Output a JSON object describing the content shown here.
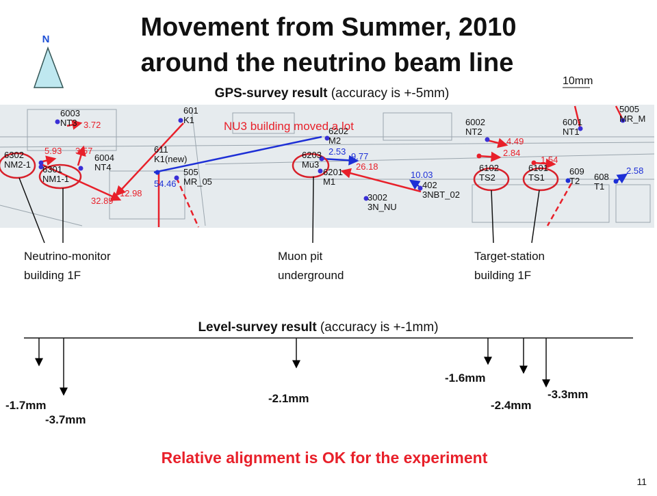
{
  "title": {
    "line1": "Movement from Summer, 2010",
    "line2": "around the neutrino beam line"
  },
  "north": "N",
  "scale": "10mm",
  "gps_heading": {
    "bold": "GPS-survey result",
    "normal": " (accuracy is +-5mm)"
  },
  "map": {
    "annotation": "NU3 building moved a lot",
    "stations": [
      {
        "id": "6003",
        "name": "NT3"
      },
      {
        "id": "601",
        "name": "K1"
      },
      {
        "id": "6302",
        "name": "NM2-1"
      },
      {
        "id": "6301",
        "name": "NM1-1"
      },
      {
        "id": "6004",
        "name": "NT4"
      },
      {
        "id": "611",
        "name": "K1(new)"
      },
      {
        "id": "505",
        "name": "MR_05"
      },
      {
        "id": "6202",
        "name": "M2"
      },
      {
        "id": "6203",
        "name": "Mu3"
      },
      {
        "id": "6201",
        "name": "M1"
      },
      {
        "id": "402",
        "name": "3NBT_02"
      },
      {
        "id": "3002",
        "name": "3N_NU"
      },
      {
        "id": "6002",
        "name": "NT2"
      },
      {
        "id": "6001",
        "name": "NT1"
      },
      {
        "id": "5005",
        "name": "MR_M"
      },
      {
        "id": "6102",
        "name": "TS2"
      },
      {
        "id": "6101",
        "name": "TS1"
      },
      {
        "id": "609",
        "name": "T2"
      },
      {
        "id": "608",
        "name": "T1"
      }
    ],
    "displacements": [
      "3.72",
      "5.93",
      "3.57",
      "32.89",
      "12.98",
      "54.46",
      "2.53",
      "9.77",
      "26.18",
      "10.03",
      "4.49",
      "2.84",
      "1.54",
      "2.58"
    ]
  },
  "callouts": [
    {
      "line1": "Neutrino-monitor",
      "line2": "building 1F"
    },
    {
      "line1": "Muon pit",
      "line2": "underground"
    },
    {
      "line1": "Target-station",
      "line2": "building 1F"
    }
  ],
  "level_heading": {
    "bold": "Level-survey result",
    "normal": " (accuracy is +-1mm)"
  },
  "level_values": [
    "-1.7mm",
    "-3.7mm",
    "-2.1mm",
    "-1.6mm",
    "-2.4mm",
    "-3.3mm"
  ],
  "conclusion": "Relative alignment is OK for the experiment",
  "page_number": "11"
}
